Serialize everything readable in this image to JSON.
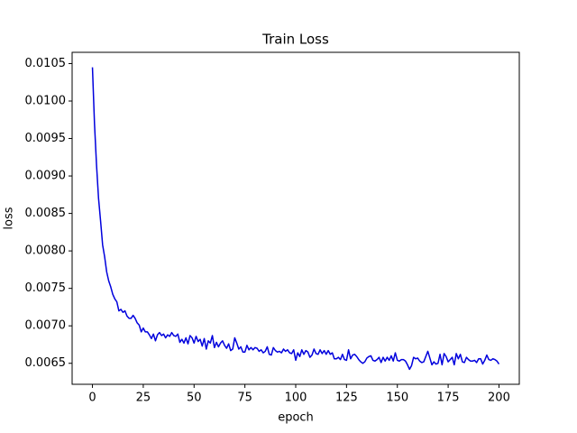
{
  "chart_data": {
    "type": "line",
    "title": "Train Loss",
    "x_label": "epoch",
    "y_label": "loss",
    "x": [
      0,
      1,
      2,
      3,
      4,
      5,
      6,
      7,
      8,
      9,
      10,
      11,
      12,
      13,
      14,
      15,
      16,
      17,
      18,
      19,
      20,
      21,
      22,
      23,
      24,
      25,
      26,
      27,
      28,
      29,
      30,
      31,
      32,
      33,
      34,
      35,
      36,
      37,
      38,
      39,
      40,
      41,
      42,
      43,
      44,
      45,
      46,
      47,
      48,
      49,
      50,
      51,
      52,
      53,
      54,
      55,
      56,
      57,
      58,
      59,
      60,
      61,
      62,
      63,
      64,
      65,
      66,
      67,
      68,
      69,
      70,
      71,
      72,
      73,
      74,
      75,
      76,
      77,
      78,
      79,
      80,
      81,
      82,
      83,
      84,
      85,
      86,
      87,
      88,
      89,
      90,
      91,
      92,
      93,
      94,
      95,
      96,
      97,
      98,
      99,
      100,
      101,
      102,
      103,
      104,
      105,
      106,
      107,
      108,
      109,
      110,
      111,
      112,
      113,
      114,
      115,
      116,
      117,
      118,
      119,
      120,
      121,
      122,
      123,
      124,
      125,
      126,
      127,
      128,
      129,
      130,
      131,
      132,
      133,
      134,
      135,
      136,
      137,
      138,
      139,
      140,
      141,
      142,
      143,
      144,
      145,
      146,
      147,
      148,
      149,
      150,
      151,
      152,
      153,
      154,
      155,
      156,
      157,
      158,
      159,
      160,
      161,
      162,
      163,
      164,
      165,
      166,
      167,
      168,
      169,
      170,
      171,
      172,
      173,
      174,
      175,
      176,
      177,
      178,
      179,
      180,
      181,
      182,
      183,
      184,
      185,
      186,
      187,
      188,
      189,
      190,
      191,
      192,
      193,
      194,
      195,
      196,
      197,
      198,
      199,
      200
    ],
    "series": [
      {
        "color": "#0000dd",
        "values": [
          0.01045,
          0.0097,
          0.00915,
          0.0087,
          0.0084,
          0.00808,
          0.00792,
          0.00772,
          0.0076,
          0.00752,
          0.00742,
          0.00736,
          0.00732,
          0.0072,
          0.00722,
          0.00718,
          0.0072,
          0.00713,
          0.0071,
          0.0071,
          0.00714,
          0.0071,
          0.00704,
          0.00701,
          0.00692,
          0.00697,
          0.00692,
          0.00692,
          0.00688,
          0.00683,
          0.00689,
          0.0068,
          0.00688,
          0.00691,
          0.00687,
          0.00689,
          0.00684,
          0.00688,
          0.00686,
          0.00691,
          0.00687,
          0.00686,
          0.00689,
          0.00678,
          0.00682,
          0.00677,
          0.00684,
          0.00676,
          0.00687,
          0.00684,
          0.00677,
          0.00686,
          0.00679,
          0.00682,
          0.00673,
          0.00683,
          0.00669,
          0.0068,
          0.00677,
          0.00687,
          0.00671,
          0.00678,
          0.00672,
          0.00677,
          0.0068,
          0.00674,
          0.0067,
          0.00676,
          0.00667,
          0.00669,
          0.00684,
          0.00677,
          0.00669,
          0.00672,
          0.00665,
          0.00665,
          0.00674,
          0.00668,
          0.00671,
          0.00668,
          0.00671,
          0.0067,
          0.00666,
          0.00668,
          0.00664,
          0.00666,
          0.00672,
          0.00662,
          0.00661,
          0.00671,
          0.00667,
          0.00665,
          0.00666,
          0.00664,
          0.00669,
          0.00666,
          0.00668,
          0.00664,
          0.00663,
          0.00668,
          0.00654,
          0.00664,
          0.00659,
          0.00668,
          0.00662,
          0.00667,
          0.00665,
          0.00658,
          0.00661,
          0.00669,
          0.00663,
          0.00662,
          0.00668,
          0.00663,
          0.00667,
          0.00662,
          0.00667,
          0.00662,
          0.00664,
          0.00656,
          0.00656,
          0.00658,
          0.00655,
          0.00662,
          0.00655,
          0.00654,
          0.00668,
          0.00656,
          0.00661,
          0.00662,
          0.00659,
          0.00655,
          0.00652,
          0.0065,
          0.00652,
          0.00657,
          0.00659,
          0.0066,
          0.00654,
          0.00653,
          0.00655,
          0.00658,
          0.00651,
          0.00658,
          0.00653,
          0.00658,
          0.00654,
          0.0066,
          0.00653,
          0.00664,
          0.00654,
          0.00653,
          0.00655,
          0.00655,
          0.00653,
          0.00648,
          0.00642,
          0.00647,
          0.00658,
          0.00656,
          0.00657,
          0.00653,
          0.00651,
          0.00652,
          0.00659,
          0.00666,
          0.00657,
          0.00648,
          0.00652,
          0.00649,
          0.0065,
          0.00662,
          0.00648,
          0.00663,
          0.00659,
          0.00652,
          0.00655,
          0.00658,
          0.00648,
          0.00663,
          0.00656,
          0.00662,
          0.00652,
          0.00651,
          0.00658,
          0.00655,
          0.00653,
          0.00653,
          0.00654,
          0.00651,
          0.00656,
          0.00656,
          0.00649,
          0.00654,
          0.00661,
          0.00655,
          0.00654,
          0.00656,
          0.00655,
          0.00653,
          0.00649
        ]
      }
    ],
    "xlim": [
      -10,
      210
    ],
    "xticks": [
      0,
      25,
      50,
      75,
      100,
      125,
      150,
      175,
      200
    ],
    "ylim": [
      0.00622,
      0.01065
    ],
    "yticks": [
      0.0065,
      {
        "value": 0.007,
        "label": "0.0070"
      },
      0.0075,
      {
        "value": 0.008,
        "label": "0.0080"
      },
      0.0085,
      {
        "value": 0.009,
        "label": "0.0090"
      },
      0.0095,
      {
        "value": 0.01,
        "label": "0.0100"
      },
      0.0105
    ],
    "grid": false
  }
}
